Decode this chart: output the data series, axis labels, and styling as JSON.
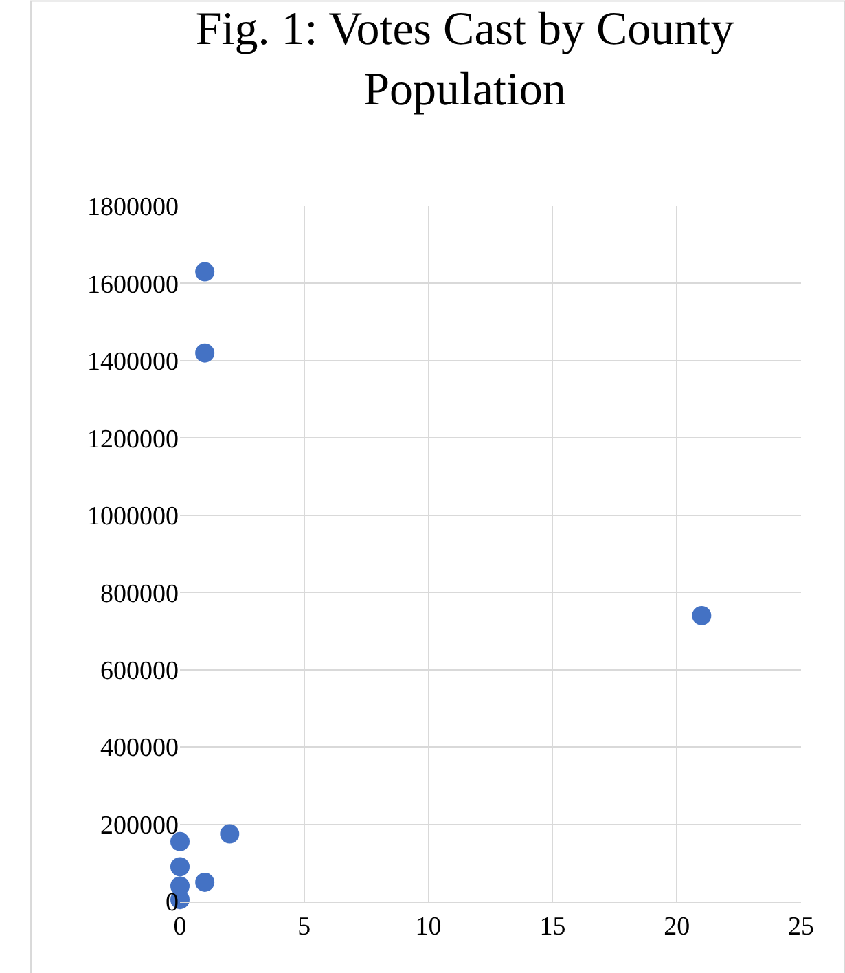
{
  "chart_data": {
    "type": "scatter",
    "title": "Fig. 1: Votes Cast by County Population",
    "x": [
      0,
      0,
      0,
      0,
      1,
      1,
      1,
      2,
      21
    ],
    "series": [
      {
        "color": "#4472c4",
        "values": [
          5000,
          40000,
          90000,
          155000,
          50000,
          1420000,
          1630000,
          175000,
          740000
        ]
      }
    ],
    "xlim": [
      0,
      25
    ],
    "xticks": [
      0,
      5,
      10,
      15,
      20,
      25
    ],
    "ylim": [
      0,
      1800000
    ],
    "yticks": [
      0,
      200000,
      400000,
      600000,
      800000,
      1000000,
      1200000,
      1400000,
      1600000,
      1800000
    ],
    "grid": true,
    "marker": "circle",
    "legend": false
  }
}
